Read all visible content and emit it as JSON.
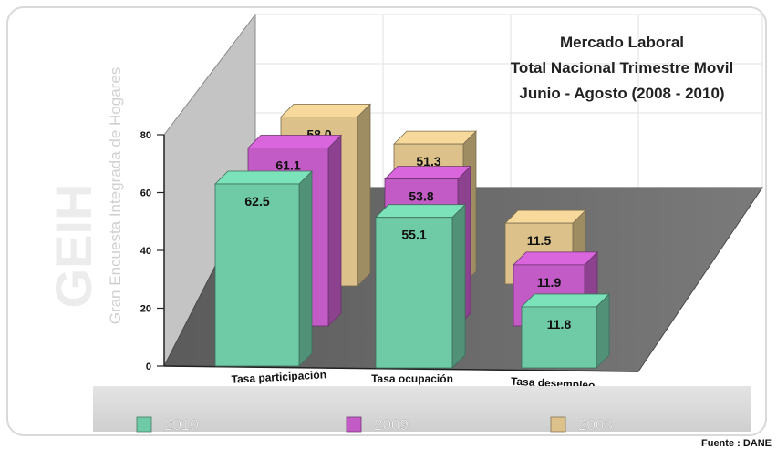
{
  "chart_data": {
    "type": "bar",
    "title": [
      "Mercado Laboral",
      "Total Nacional Trimestre Movil",
      "Junio - Agosto (2008 - 2010)"
    ],
    "categories": [
      "Tasa participación",
      "Tasa ocupación",
      "Tasa desempleo"
    ],
    "series": [
      {
        "name": "2010",
        "values": [
          62.5,
          55.1,
          11.8
        ],
        "color": "#6fcaa6"
      },
      {
        "name": "2009",
        "values": [
          61.1,
          53.8,
          11.9
        ],
        "color": "#c25bc5"
      },
      {
        "name": "2008",
        "values": [
          58.0,
          51.3,
          11.5
        ],
        "color": "#dcc28a"
      }
    ],
    "ylim": [
      0,
      80
    ],
    "yticks": [
      0,
      20,
      40,
      60,
      80
    ],
    "legend_position": "bottom",
    "source": "Fuente : DANE",
    "watermark_big": "GEIH",
    "watermark_small": "Gran Encuesta Integrada de Hogares"
  }
}
